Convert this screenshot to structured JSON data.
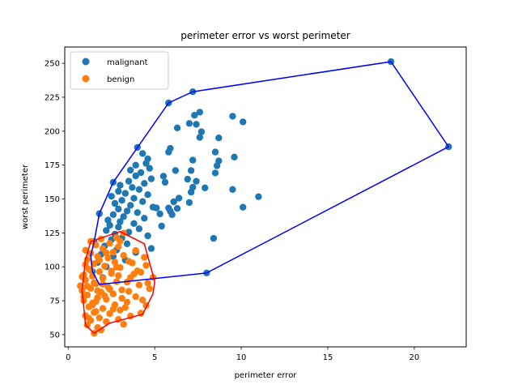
{
  "chart_data": {
    "type": "scatter",
    "title": "perimeter error vs worst perimeter",
    "xlabel": "perimeter error",
    "ylabel": "worst perimeter",
    "xlim": [
      -0.2,
      23.0
    ],
    "ylim": [
      41,
      262
    ],
    "xticks": [
      0,
      5,
      10,
      15,
      20
    ],
    "yticks": [
      50,
      75,
      100,
      125,
      150,
      175,
      200,
      225,
      250
    ],
    "grid": false,
    "legend_position": "top-left",
    "series": [
      {
        "name": "malignant",
        "color": "#1f77b4",
        "points": [
          [
            18.65,
            251.2
          ],
          [
            21.98,
            188.5
          ],
          [
            8.0,
            95.5
          ],
          [
            7.2,
            229.0
          ],
          [
            5.8,
            220.8
          ],
          [
            7.6,
            214.0
          ],
          [
            7.3,
            211.7
          ],
          [
            9.5,
            211.0
          ],
          [
            10.1,
            206.8
          ],
          [
            7.0,
            205.7
          ],
          [
            7.4,
            205.0
          ],
          [
            6.3,
            202.4
          ],
          [
            7.7,
            199.5
          ],
          [
            7.6,
            195.4
          ],
          [
            8.7,
            195.0
          ],
          [
            5.9,
            187.3
          ],
          [
            5.8,
            184.6
          ],
          [
            8.5,
            184.6
          ],
          [
            9.6,
            180.9
          ],
          [
            7.2,
            178.6
          ],
          [
            8.7,
            178.0
          ],
          [
            8.6,
            174.5
          ],
          [
            6.2,
            171.0
          ],
          [
            7.1,
            171.0
          ],
          [
            8.5,
            169.2
          ],
          [
            5.5,
            166.8
          ],
          [
            6.9,
            164.6
          ],
          [
            7.4,
            163.0
          ],
          [
            5.6,
            162.3
          ],
          [
            7.2,
            158.6
          ],
          [
            7.9,
            158.2
          ],
          [
            9.5,
            157.0
          ],
          [
            7.1,
            155.0
          ],
          [
            11.0,
            151.7
          ],
          [
            6.4,
            150.6
          ],
          [
            6.1,
            147.9
          ],
          [
            7.0,
            147.4
          ],
          [
            5.1,
            143.4
          ],
          [
            5.8,
            143.3
          ],
          [
            6.3,
            143.0
          ],
          [
            10.1,
            143.9
          ],
          [
            5.9,
            141.0
          ],
          [
            5.3,
            139.0
          ],
          [
            6.0,
            138.5
          ],
          [
            8.4,
            121.0
          ],
          [
            5.4,
            130.0
          ],
          [
            4.0,
            188.0
          ],
          [
            4.3,
            183.5
          ],
          [
            4.6,
            179.6
          ],
          [
            4.5,
            176.2
          ],
          [
            3.9,
            174.9
          ],
          [
            4.7,
            172.6
          ],
          [
            3.6,
            171.2
          ],
          [
            4.2,
            169.4
          ],
          [
            3.9,
            167.0
          ],
          [
            4.8,
            164.9
          ],
          [
            3.5,
            163.1
          ],
          [
            2.6,
            162.3
          ],
          [
            4.4,
            161.5
          ],
          [
            3.0,
            160.1
          ],
          [
            3.7,
            158.5
          ],
          [
            4.1,
            157.0
          ],
          [
            2.9,
            155.6
          ],
          [
            3.3,
            154.1
          ],
          [
            4.6,
            153.2
          ],
          [
            2.5,
            152.0
          ],
          [
            3.8,
            150.5
          ],
          [
            3.1,
            149.0
          ],
          [
            4.3,
            148.1
          ],
          [
            2.7,
            146.7
          ],
          [
            3.6,
            145.3
          ],
          [
            4.9,
            144.0
          ],
          [
            2.9,
            142.6
          ],
          [
            3.4,
            141.1
          ],
          [
            4.0,
            140.0
          ],
          [
            1.8,
            139.2
          ],
          [
            2.6,
            138.5
          ],
          [
            3.2,
            137.0
          ],
          [
            4.4,
            135.8
          ],
          [
            2.3,
            134.4
          ],
          [
            3.0,
            133.2
          ],
          [
            3.8,
            131.9
          ],
          [
            2.4,
            130.6
          ],
          [
            2.9,
            129.3
          ],
          [
            4.1,
            128.0
          ],
          [
            2.2,
            126.8
          ],
          [
            3.5,
            125.5
          ],
          [
            2.7,
            124.0
          ],
          [
            4.6,
            122.8
          ],
          [
            3.1,
            121.2
          ],
          [
            2.5,
            120.0
          ],
          [
            1.5,
            118.5
          ],
          [
            3.4,
            117.0
          ],
          [
            2.1,
            115.3
          ],
          [
            4.8,
            113.5
          ],
          [
            2.8,
            112.4
          ],
          [
            3.9,
            110.6
          ],
          [
            1.9,
            109.2
          ],
          [
            2.6,
            107.6
          ],
          [
            3.3,
            105.0
          ],
          [
            1.7,
            103.2
          ],
          [
            2.2,
            100.0
          ],
          [
            1.4,
            96.5
          ],
          [
            2.0,
            92.0
          ]
        ]
      },
      {
        "name": "benign",
        "color": "#ff7f0e",
        "points": [
          [
            1.5,
            51.0
          ],
          [
            1.1,
            57.2
          ],
          [
            1.3,
            60.5
          ],
          [
            1.8,
            62.3
          ],
          [
            1.0,
            64.0
          ],
          [
            2.4,
            65.5
          ],
          [
            1.6,
            67.0
          ],
          [
            4.2,
            65.8
          ],
          [
            3.0,
            68.1
          ],
          [
            2.0,
            69.3
          ],
          [
            1.2,
            70.5
          ],
          [
            4.5,
            71.5
          ],
          [
            2.7,
            72.0
          ],
          [
            1.4,
            73.2
          ],
          [
            3.4,
            74.0
          ],
          [
            0.9,
            75.1
          ],
          [
            2.2,
            76.0
          ],
          [
            1.7,
            77.3
          ],
          [
            3.9,
            78.0
          ],
          [
            1.1,
            79.2
          ],
          [
            2.6,
            80.0
          ],
          [
            1.9,
            81.3
          ],
          [
            0.8,
            82.5
          ],
          [
            3.1,
            83.0
          ],
          [
            1.3,
            84.1
          ],
          [
            2.3,
            85.2
          ],
          [
            0.7,
            86.0
          ],
          [
            1.6,
            87.4
          ],
          [
            4.6,
            88.0
          ],
          [
            2.8,
            89.1
          ],
          [
            1.0,
            90.3
          ],
          [
            2.0,
            91.5
          ],
          [
            3.6,
            92.0
          ],
          [
            1.4,
            93.1
          ],
          [
            0.9,
            94.0
          ],
          [
            2.5,
            95.2
          ],
          [
            1.8,
            96.4
          ],
          [
            4.0,
            97.0
          ],
          [
            1.2,
            98.3
          ],
          [
            3.0,
            99.4
          ],
          [
            2.1,
            100.5
          ],
          [
            4.5,
            101.0
          ],
          [
            1.5,
            102.2
          ],
          [
            2.7,
            103.4
          ],
          [
            3.5,
            104.0
          ],
          [
            1.1,
            105.3
          ],
          [
            2.3,
            106.5
          ],
          [
            1.7,
            107.6
          ],
          [
            3.2,
            108.4
          ],
          [
            1.3,
            109.9
          ],
          [
            2.6,
            110.8
          ],
          [
            1.0,
            112.2
          ],
          [
            2.0,
            113.4
          ],
          [
            2.9,
            114.8
          ],
          [
            1.6,
            116.0
          ],
          [
            2.4,
            117.3
          ],
          [
            3.0,
            119.0
          ],
          [
            2.8,
            121.5
          ],
          [
            3.2,
            124.8
          ],
          [
            1.2,
            62.0
          ],
          [
            1.7,
            55.2
          ],
          [
            2.2,
            59.5
          ],
          [
            3.6,
            63.7
          ],
          [
            2.9,
            61.2
          ],
          [
            1.5,
            66.4
          ],
          [
            3.3,
            70.0
          ],
          [
            4.3,
            75.5
          ],
          [
            4.7,
            83.8
          ],
          [
            4.9,
            92.2
          ],
          [
            4.1,
            86.6
          ],
          [
            3.8,
            94.7
          ],
          [
            4.4,
            107.0
          ],
          [
            3.9,
            112.0
          ],
          [
            1.3,
            118.7
          ],
          [
            1.9,
            120.5
          ],
          [
            2.5,
            96.8
          ],
          [
            3.4,
            88.7
          ],
          [
            2.1,
            78.6
          ],
          [
            1.4,
            71.8
          ],
          [
            0.8,
            92.8
          ],
          [
            1.0,
            101.6
          ],
          [
            1.8,
            104.9
          ],
          [
            2.4,
            83.4
          ],
          [
            3.1,
            76.8
          ],
          [
            1.5,
            88.1
          ],
          [
            2.8,
            99.8
          ],
          [
            3.7,
            102.8
          ],
          [
            2.2,
            110.2
          ],
          [
            1.1,
            85.7
          ],
          [
            0.9,
            78.1
          ],
          [
            1.6,
            74.4
          ],
          [
            2.6,
            68.9
          ],
          [
            3.2,
            57.6
          ],
          [
            1.9,
            53.5
          ],
          [
            1.3,
            97.4
          ],
          [
            2.0,
            87.2
          ],
          [
            2.9,
            93.5
          ],
          [
            3.5,
            81.9
          ],
          [
            4.2,
            96.0
          ],
          [
            1.7,
            82.4
          ]
        ]
      }
    ],
    "hulls": [
      {
        "color": "#0000ff",
        "points": [
          [
            1.5,
            118.5
          ],
          [
            1.3,
            108.0
          ],
          [
            1.4,
            96.5
          ],
          [
            1.8,
            87.0
          ],
          [
            8.0,
            95.5
          ],
          [
            21.98,
            188.5
          ],
          [
            18.65,
            251.2
          ],
          [
            7.2,
            229.0
          ],
          [
            5.8,
            220.8
          ],
          [
            2.6,
            162.3
          ],
          [
            1.8,
            139.2
          ],
          [
            1.5,
            118.5
          ]
        ]
      },
      {
        "color": "#ff0000",
        "points": [
          [
            1.5,
            51.0
          ],
          [
            1.0,
            57.2
          ],
          [
            0.8,
            82.5
          ],
          [
            1.0,
            105.3
          ],
          [
            1.3,
            118.7
          ],
          [
            3.0,
            126.0
          ],
          [
            4.4,
            117.0
          ],
          [
            5.0,
            89.0
          ],
          [
            4.9,
            80.0
          ],
          [
            4.3,
            65.0
          ],
          [
            2.4,
            58.5
          ],
          [
            1.5,
            51.0
          ]
        ]
      }
    ]
  }
}
